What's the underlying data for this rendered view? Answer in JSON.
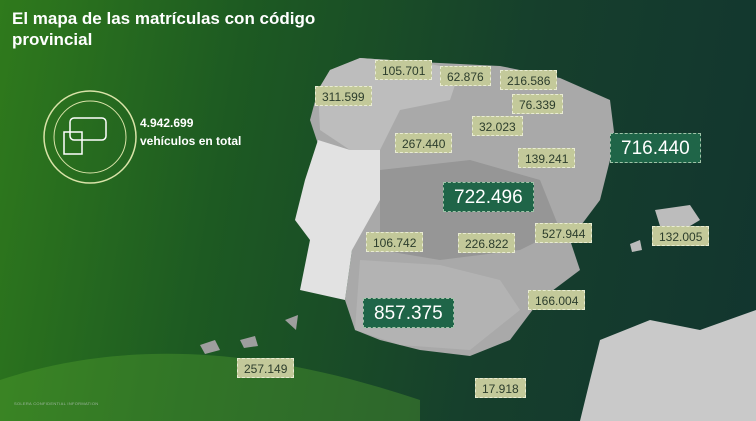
{
  "header": {
    "title": "El mapa de las matrículas con código provincial"
  },
  "summary": {
    "total": "4.942.699",
    "caption": "vehículos en total"
  },
  "labels": [
    "105.701",
    "62.876",
    "216.586",
    "311.599",
    "76.339",
    "32.023",
    "267.440",
    "139.241",
    "716.440",
    "722.496",
    "527.944",
    "132.005",
    "106.742",
    "226.822",
    "857.375",
    "166.004",
    "257.149",
    "17.918"
  ],
  "footer": {
    "note": "SOLERA CONFIDENTIAL INFORMATION"
  }
}
